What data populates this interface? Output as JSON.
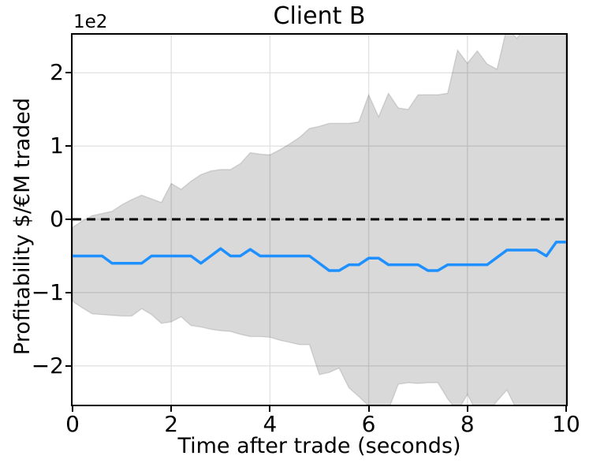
{
  "title": "Client B",
  "chart_data": {
    "type": "line",
    "title": "Client B",
    "xlabel": "Time after trade (seconds)",
    "ylabel": "Profitability $/€M traded",
    "y_offset_label": "1e2",
    "xlim": [
      0,
      10
    ],
    "ylim": [
      -253,
      252
    ],
    "grid": true,
    "x_ticks": [
      0,
      2,
      4,
      6,
      8,
      10
    ],
    "x_tick_labels": [
      "0",
      "2",
      "4",
      "6",
      "8",
      "10"
    ],
    "y_ticks": [
      -200,
      -100,
      0,
      100,
      200
    ],
    "y_tick_labels": [
      "−2",
      "−1",
      "0",
      "1",
      "2"
    ],
    "reference_line": {
      "y": 0,
      "style": "dashed",
      "color": "#000000"
    },
    "x": [
      0,
      0.2,
      0.4,
      0.6,
      0.8,
      1.0,
      1.2,
      1.4,
      1.6,
      1.8,
      2.0,
      2.2,
      2.4,
      2.6,
      2.8,
      3.0,
      3.2,
      3.4,
      3.6,
      3.8,
      4.0,
      4.2,
      4.4,
      4.6,
      4.8,
      5.0,
      5.2,
      5.4,
      5.6,
      5.8,
      6.0,
      6.2,
      6.4,
      6.6,
      6.8,
      7.0,
      7.2,
      7.4,
      7.6,
      7.8,
      8.0,
      8.2,
      8.4,
      8.6,
      8.8,
      9.0,
      9.2,
      9.4,
      9.6,
      9.8,
      10.0
    ],
    "series": [
      {
        "name": "mean",
        "values": [
          -50,
          -50,
          -50,
          -50,
          -60,
          -60,
          -60,
          -60,
          -50,
          -50,
          -50,
          -50,
          -50,
          -60,
          -50,
          -40,
          -50,
          -50,
          -41,
          -50,
          -50,
          -50,
          -50,
          -50,
          -50,
          -60,
          -70,
          -70,
          -62,
          -62,
          -53,
          -53,
          -62,
          -62,
          -62,
          -62,
          -70,
          -70,
          -62,
          -62,
          -62,
          -62,
          -62,
          -52,
          -42,
          -42,
          -42,
          -42,
          -50,
          -31,
          -31
        ]
      },
      {
        "name": "band_upper",
        "values": [
          -11,
          -2,
          5,
          8,
          11,
          20,
          27,
          33,
          28,
          23,
          49,
          41,
          52,
          61,
          66,
          68,
          68,
          76,
          91,
          89,
          88,
          95,
          103,
          112,
          124,
          127,
          131,
          131,
          131,
          133,
          170,
          140,
          172,
          152,
          150,
          170,
          170,
          170,
          172,
          231,
          213,
          230,
          212,
          205,
          262,
          247,
          265,
          270,
          272,
          270,
          275
        ]
      },
      {
        "name": "band_lower",
        "values": [
          -112,
          -121,
          -129,
          -130,
          -131,
          -132,
          -132,
          -122,
          -130,
          -142,
          -140,
          -133,
          -145,
          -147,
          -150,
          -152,
          -153,
          -157,
          -160,
          -160,
          -161,
          -165,
          -168,
          -171,
          -171,
          -212,
          -209,
          -203,
          -230,
          -242,
          -255,
          -265,
          -260,
          -225,
          -223,
          -224,
          -223,
          -223,
          -245,
          -262,
          -239,
          -265,
          -265,
          -248,
          -233,
          -260,
          -270,
          -270,
          -270,
          -270,
          -270
        ]
      }
    ],
    "colors": {
      "mean_line": "#1E90FF",
      "band_fill": "rgba(0,0,0,0.148)",
      "band_edge": "rgba(0,0,0,0.12)",
      "grid": "#e2e2e2",
      "reference": "#000000",
      "background": "#ffffff"
    }
  }
}
